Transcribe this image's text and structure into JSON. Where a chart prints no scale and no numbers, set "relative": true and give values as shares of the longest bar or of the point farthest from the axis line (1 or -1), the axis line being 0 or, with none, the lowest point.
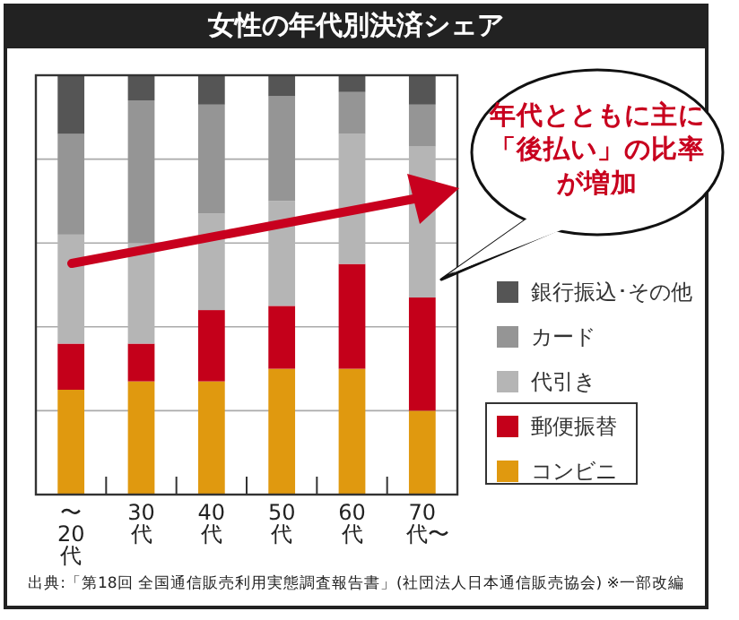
{
  "chart_data": {
    "type": "bar",
    "title": "女性の年代別決済シェア",
    "categories": [
      "〜20代",
      "30代",
      "40代",
      "50代",
      "60代",
      "70代〜"
    ],
    "stacked": true,
    "relative": true,
    "grid": "y",
    "legend": "right",
    "series": [
      {
        "name": "コンビニ",
        "color": "#e0990f",
        "values": [
          0.25,
          0.27,
          0.27,
          0.3,
          0.3,
          0.2
        ]
      },
      {
        "name": "郵便振替",
        "color": "#c4001a",
        "values": [
          0.11,
          0.09,
          0.17,
          0.15,
          0.25,
          0.27
        ]
      },
      {
        "name": "代引き",
        "color": "#b5b5b5",
        "values": [
          0.26,
          0.24,
          0.23,
          0.25,
          0.31,
          0.36
        ]
      },
      {
        "name": "カード",
        "color": "#959595",
        "values": [
          0.24,
          0.34,
          0.26,
          0.25,
          0.1,
          0.1
        ]
      },
      {
        "name": "銀行振込･その他",
        "color": "#555555",
        "values": [
          0.14,
          0.06,
          0.07,
          0.05,
          0.04,
          0.07
        ]
      }
    ],
    "annotations": [
      "年代とともに主に「後払い」の比率が増加",
      "出典:「第18回 全国通信販売利用実態調査報告書」(社団法人日本通信販売協会) ※一部改編"
    ]
  }
}
